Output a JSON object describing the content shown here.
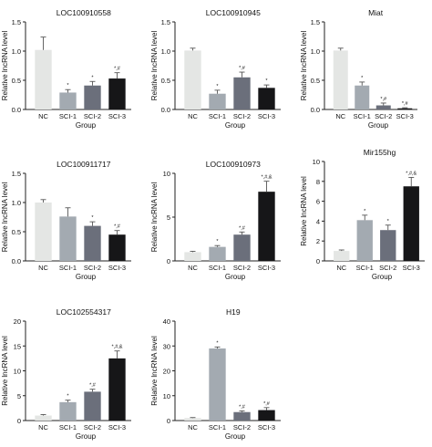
{
  "figure": {
    "x_axis_label": "Group",
    "y_axis_label": "Relative lncRNA level"
  },
  "chart_data": [
    {
      "type": "bar",
      "title": "LOC100910558",
      "categories": [
        "NC",
        "SCI-1",
        "SCI-2",
        "SCI-3"
      ],
      "values": [
        1.02,
        0.29,
        0.41,
        0.53
      ],
      "errors": [
        0.22,
        0.05,
        0.07,
        0.1
      ],
      "annotations": [
        "",
        "*",
        "*",
        "*,#"
      ],
      "ylim": [
        0,
        1.5
      ],
      "yticks": [
        0.0,
        0.5,
        1.0,
        1.5
      ],
      "xlabel": "Group",
      "ylabel": "Relative lncRNA level"
    },
    {
      "type": "bar",
      "title": "LOC100910945",
      "categories": [
        "NC",
        "SCI-1",
        "SCI-2",
        "SCI-3"
      ],
      "values": [
        1.01,
        0.27,
        0.55,
        0.37
      ],
      "errors": [
        0.04,
        0.06,
        0.09,
        0.05
      ],
      "annotations": [
        "",
        "*",
        "*,#",
        "*"
      ],
      "ylim": [
        0,
        1.5
      ],
      "yticks": [
        0.0,
        0.5,
        1.0,
        1.5
      ],
      "xlabel": "Group",
      "ylabel": "Relative lncRNA level"
    },
    {
      "type": "bar",
      "title": "Miat",
      "categories": [
        "NC",
        "SCI-1",
        "SCI-2",
        "SCI-3"
      ],
      "values": [
        1.01,
        0.41,
        0.07,
        0.02
      ],
      "errors": [
        0.04,
        0.06,
        0.04,
        0.01
      ],
      "annotations": [
        "",
        "*",
        "*,#",
        "*,#"
      ],
      "ylim": [
        0,
        1.5
      ],
      "yticks": [
        0.0,
        0.5,
        1.0,
        1.5
      ],
      "xlabel": "Group",
      "ylabel": "Relative lncRNA level"
    },
    {
      "type": "bar",
      "title": "LOC100911717",
      "categories": [
        "NC",
        "SCI-1",
        "SCI-2",
        "SCI-3"
      ],
      "values": [
        1.0,
        0.76,
        0.6,
        0.45
      ],
      "errors": [
        0.05,
        0.15,
        0.07,
        0.07
      ],
      "annotations": [
        "",
        "",
        "*",
        "*,#"
      ],
      "ylim": [
        0,
        1.5
      ],
      "yticks": [
        0.0,
        0.5,
        1.0,
        1.5
      ],
      "xlabel": "Group",
      "ylabel": "Relative lncRNA level"
    },
    {
      "type": "bar",
      "title": "LOC100910973",
      "categories": [
        "NC",
        "SCI-1",
        "SCI-2",
        "SCI-3"
      ],
      "values": [
        1.0,
        1.6,
        3.0,
        7.9
      ],
      "errors": [
        0.1,
        0.15,
        0.3,
        1.2
      ],
      "annotations": [
        "",
        "*",
        "*,#",
        "*,#,&"
      ],
      "ylim": [
        0,
        10
      ],
      "yticks": [
        0,
        5,
        10
      ],
      "xlabel": "Group",
      "ylabel": "Relative lncRNA level"
    },
    {
      "type": "bar",
      "title": "Mir155hg",
      "categories": [
        "NC",
        "SCI-1",
        "SCI-2",
        "SCI-3"
      ],
      "values": [
        1.0,
        4.1,
        3.1,
        7.5
      ],
      "errors": [
        0.1,
        0.5,
        0.5,
        0.9
      ],
      "annotations": [
        "",
        "*",
        "*",
        "*,#,&"
      ],
      "ylim": [
        0,
        10
      ],
      "yticks": [
        0,
        2,
        4,
        6,
        8,
        10
      ],
      "xlabel": "Group",
      "ylabel": "Relative lncRNA level"
    },
    {
      "type": "bar",
      "title": "LOC102554317",
      "categories": [
        "NC",
        "SCI-1",
        "SCI-2",
        "SCI-3"
      ],
      "values": [
        1.0,
        3.7,
        5.8,
        12.5
      ],
      "errors": [
        0.2,
        0.4,
        0.5,
        1.5
      ],
      "annotations": [
        "",
        "*",
        "*,#",
        "*,#,&"
      ],
      "ylim": [
        0,
        20
      ],
      "yticks": [
        0,
        5,
        10,
        15,
        20
      ],
      "xlabel": "Group",
      "ylabel": "Relative lncRNA level"
    },
    {
      "type": "bar",
      "title": "H19",
      "categories": [
        "NC",
        "SCI-1",
        "SCI-2",
        "SCI-3"
      ],
      "values": [
        1.0,
        29.0,
        3.4,
        4.2
      ],
      "errors": [
        0.2,
        0.6,
        0.5,
        1.0
      ],
      "annotations": [
        "",
        "*",
        "*,#",
        "*,#"
      ],
      "ylim": [
        0,
        40
      ],
      "yticks": [
        0,
        10,
        20,
        30,
        40
      ],
      "xlabel": "Group",
      "ylabel": "Relative lncRNA level"
    }
  ],
  "colors": {
    "bars": [
      "#e4e6e4",
      "#a3aab1",
      "#6b6f7b",
      "#161618"
    ],
    "axis": "#222222",
    "error": "#555555"
  }
}
